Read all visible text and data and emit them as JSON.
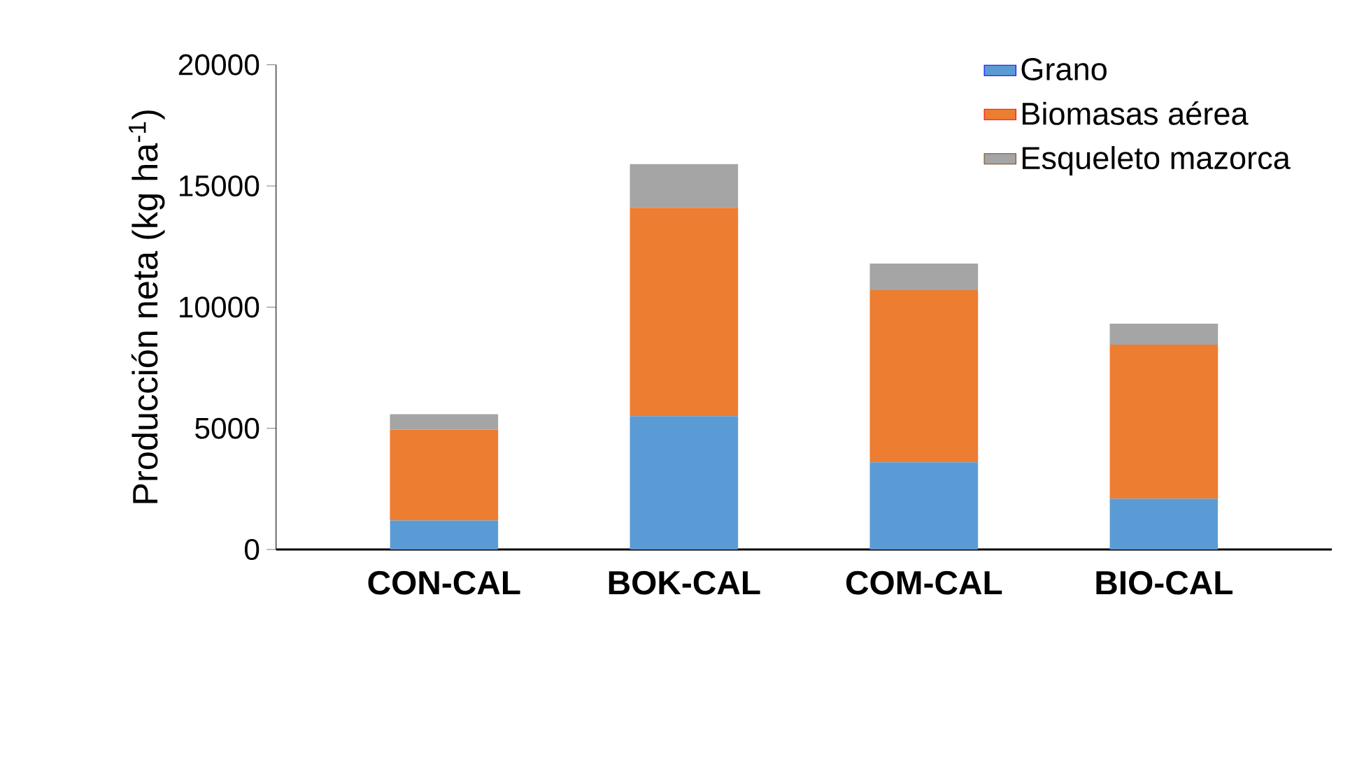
{
  "chart_data": {
    "type": "bar",
    "stacked": true,
    "ylabel": "Producción neta (kg ha$^{-1}$)",
    "categories": [
      "CON-CAL",
      "BOK-CAL",
      "COM-CAL",
      "BIO-CAL"
    ],
    "series": [
      {
        "name": "Grano",
        "color": "#5b9bd5",
        "values": [
          1200,
          5500,
          3600,
          2100
        ]
      },
      {
        "name": "Biomasas aérea",
        "color": "#ed7d31",
        "values": [
          3750,
          8600,
          7100,
          6350
        ]
      },
      {
        "name": "Esqueleto mazorca",
        "color": "#a5a5a5",
        "values": [
          630,
          1800,
          1100,
          870
        ]
      }
    ],
    "ylim": [
      0,
      20000
    ],
    "yticks": [
      0,
      5000,
      10000,
      15000,
      20000
    ],
    "grid": false,
    "legend": "top right"
  }
}
